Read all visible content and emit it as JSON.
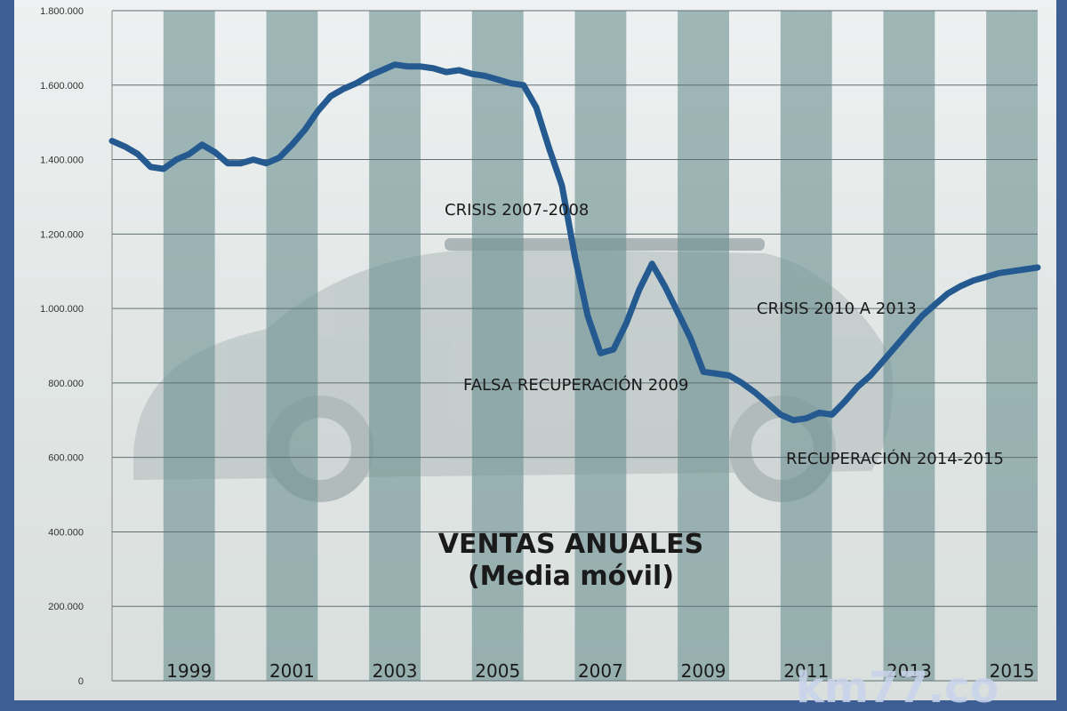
{
  "chart_data": {
    "type": "line",
    "title": "VENTAS ANUALES",
    "subtitle": "(Media móvil)",
    "xlabel": "",
    "ylabel": "",
    "xlim": [
      1998.0,
      2016.0
    ],
    "ylim": [
      0,
      1800000
    ],
    "ytick_values": [
      0,
      200000,
      400000,
      600000,
      800000,
      1000000,
      1200000,
      1400000,
      1600000,
      1800000
    ],
    "ytick_labels": [
      "0",
      "200.000",
      "400.000",
      "600.000",
      "800.000",
      "1.000.000",
      "1.200.000",
      "1.400.000",
      "1.600.000",
      "1.800.000"
    ],
    "xtick_values": [
      1999,
      2001,
      2003,
      2005,
      2007,
      2009,
      2011,
      2013,
      2015
    ],
    "xtick_labels": [
      "1999",
      "2001",
      "2003",
      "2005",
      "2007",
      "2009",
      "2011",
      "2013",
      "2015"
    ],
    "grid": true,
    "line_color": "#245a90",
    "band_color": "#6e9293",
    "series": [
      {
        "name": "",
        "x": [
          1998.0,
          1998.25,
          1998.5,
          1998.75,
          1999.0,
          1999.25,
          1999.5,
          1999.75,
          2000.0,
          2000.25,
          2000.5,
          2000.75,
          2001.0,
          2001.25,
          2001.5,
          2001.75,
          2002.0,
          2002.25,
          2002.5,
          2002.75,
          2003.0,
          2003.25,
          2003.5,
          2003.75,
          2004.0,
          2004.25,
          2004.5,
          2004.75,
          2005.0,
          2005.25,
          2005.5,
          2005.75,
          2006.0,
          2006.25,
          2006.5,
          2006.75,
          2007.0,
          2007.25,
          2007.5,
          2007.75,
          2008.0,
          2008.25,
          2008.5,
          2008.75,
          2009.0,
          2009.25,
          2009.5,
          2009.75,
          2010.0,
          2010.25,
          2010.5,
          2010.75,
          2011.0,
          2011.25,
          2011.5,
          2011.75,
          2012.0,
          2012.25,
          2012.5,
          2012.75,
          2013.0,
          2013.25,
          2013.5,
          2013.75,
          2014.0,
          2014.25,
          2014.5,
          2014.75,
          2015.0,
          2015.25,
          2015.5,
          2015.75,
          2016.0
        ],
        "values": [
          1450000,
          1435000,
          1415000,
          1380000,
          1375000,
          1400000,
          1415000,
          1440000,
          1420000,
          1390000,
          1390000,
          1400000,
          1390000,
          1405000,
          1440000,
          1480000,
          1530000,
          1570000,
          1590000,
          1605000,
          1625000,
          1640000,
          1655000,
          1650000,
          1650000,
          1645000,
          1635000,
          1640000,
          1630000,
          1625000,
          1615000,
          1605000,
          1600000,
          1540000,
          1430000,
          1330000,
          1140000,
          980000,
          880000,
          890000,
          960000,
          1050000,
          1120000,
          1060000,
          990000,
          920000,
          830000,
          825000,
          820000,
          800000,
          775000,
          745000,
          715000,
          700000,
          705000,
          720000,
          715000,
          750000,
          790000,
          820000,
          860000,
          900000,
          940000,
          980000,
          1010000,
          1040000,
          1060000,
          1075000,
          1085000,
          1095000,
          1100000,
          1105000,
          1110000
        ]
      }
    ],
    "annotations": [
      {
        "text": "CRISIS 2007-2008"
      },
      {
        "text": "CRISIS 2010 A 2013"
      },
      {
        "text": "FALSA RECUPERACIÓN 2009"
      },
      {
        "text": "RECUPERACIÓN  2014-2015"
      }
    ],
    "watermark": "km77.co"
  }
}
